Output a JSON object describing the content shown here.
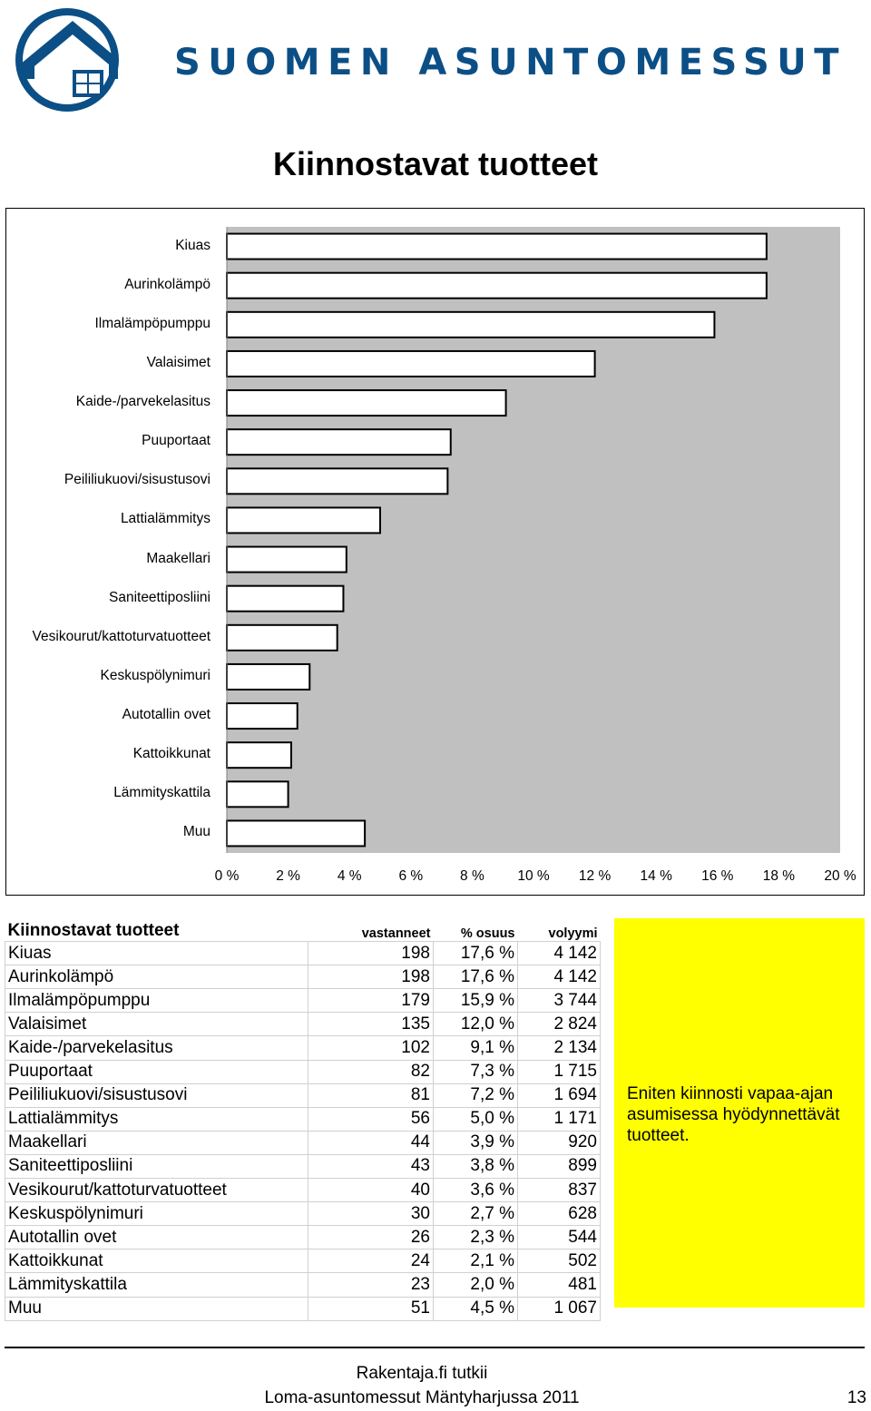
{
  "header": {
    "brand": "SUOMEN ASUNTOMESSUT",
    "logo_icon": "house-logo-icon",
    "logo_color": "#0b4f86"
  },
  "page_title": "Kiinnostavat tuotteet",
  "chart_data": {
    "type": "bar",
    "orientation": "horizontal",
    "categories": [
      "Kiuas",
      "Aurinkolämpö",
      "Ilmalämpöpumppu",
      "Valaisimet",
      "Kaide-/parvekelasitus",
      "Puuportaat",
      "Peililiukuovi/sisustusovi",
      "Lattialämmitys",
      "Maakellari",
      "Saniteettiposliini",
      "Vesikourut/kattoturvatuotteet",
      "Keskuspölynimuri",
      "Autotallin ovet",
      "Kattoikkunat",
      "Lämmityskattila",
      "Muu"
    ],
    "values": [
      17.6,
      17.6,
      15.9,
      12.0,
      9.1,
      7.3,
      7.2,
      5.0,
      3.9,
      3.8,
      3.6,
      2.7,
      2.3,
      2.1,
      2.0,
      4.5
    ],
    "xlim": [
      0,
      20
    ],
    "xticks": [
      "0 %",
      "2 %",
      "4 %",
      "6 %",
      "8 %",
      "10 %",
      "12 %",
      "14 %",
      "16 %",
      "18 %",
      "20 %"
    ],
    "bar_color": "#ffffff",
    "bar_border": "#000000",
    "plot_background": "#c0c0c0",
    "grid": false
  },
  "table": {
    "headers": [
      "Kiinnostavat tuotteet",
      "vastanneet",
      "% osuus",
      "volyymi"
    ],
    "rows": [
      [
        "Kiuas",
        "198",
        "17,6 %",
        "4 142"
      ],
      [
        "Aurinkolämpö",
        "198",
        "17,6 %",
        "4 142"
      ],
      [
        "Ilmalämpöpumppu",
        "179",
        "15,9 %",
        "3 744"
      ],
      [
        "Valaisimet",
        "135",
        "12,0 %",
        "2 824"
      ],
      [
        "Kaide-/parvekelasitus",
        "102",
        "9,1 %",
        "2 134"
      ],
      [
        "Puuportaat",
        "82",
        "7,3 %",
        "1 715"
      ],
      [
        "Peililiukuovi/sisustusovi",
        "81",
        "7,2 %",
        "1 694"
      ],
      [
        "Lattialämmitys",
        "56",
        "5,0 %",
        "1 171"
      ],
      [
        "Maakellari",
        "44",
        "3,9 %",
        "920"
      ],
      [
        "Saniteettiposliini",
        "43",
        "3,8 %",
        "899"
      ],
      [
        "Vesikourut/kattoturvatuotteet",
        "40",
        "3,6 %",
        "837"
      ],
      [
        "Keskuspölynimuri",
        "30",
        "2,7 %",
        "628"
      ],
      [
        "Autotallin ovet",
        "26",
        "2,3 %",
        "544"
      ],
      [
        "Kattoikkunat",
        "24",
        "2,1 %",
        "502"
      ],
      [
        "Lämmityskattila",
        "23",
        "2,0 %",
        "481"
      ],
      [
        "Muu",
        "51",
        "4,5 %",
        "1 067"
      ]
    ]
  },
  "note": {
    "text": "Eniten kiinnosti vapaa-ajan asumisessa hyödynnettävät tuotteet.",
    "background": "#ffff00"
  },
  "footer": {
    "line1": "Rakentaja.fi tutkii",
    "line2": "Loma-asuntomessut Mäntyharjussa 2011",
    "page_number": "13"
  }
}
